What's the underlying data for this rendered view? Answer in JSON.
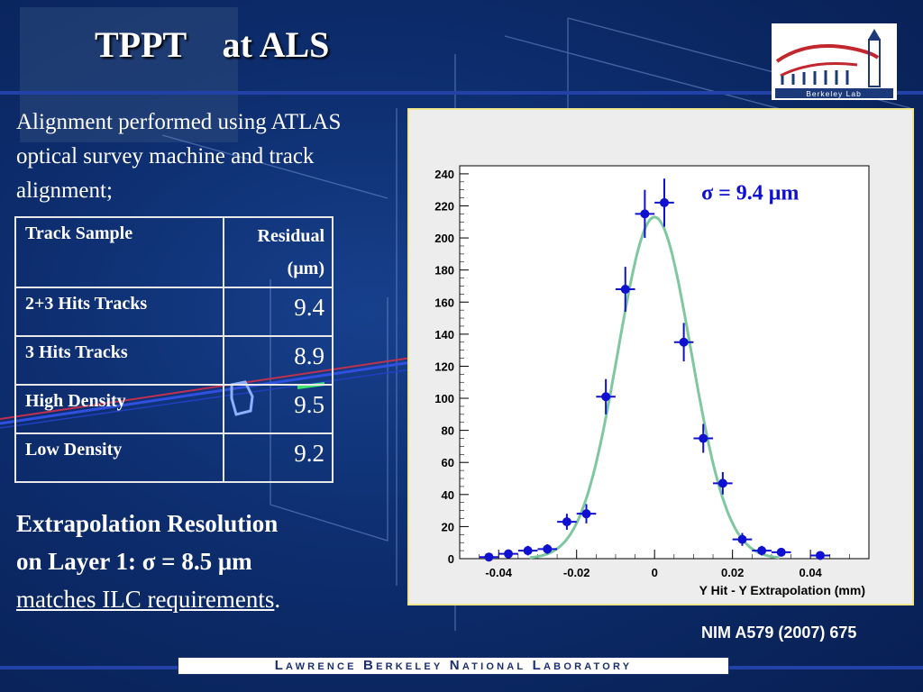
{
  "slide": {
    "title": "TPPT    at ALS",
    "intro": "Alignment performed using ATLAS optical survey machine and track alignment;",
    "table": {
      "header_sample": "Track Sample",
      "header_residual": "Residual",
      "header_unit": "(μm)",
      "rows": [
        {
          "name": "2+3 Hits Tracks",
          "value": "9.4"
        },
        {
          "name": "3 Hits Tracks",
          "value": "8.9"
        },
        {
          "name": "High Density",
          "value": "9.5"
        },
        {
          "name": "Low Density",
          "value": "9.2"
        }
      ]
    },
    "extrapolation": {
      "line1": "Extrapolation Resolution",
      "line2": "on Layer 1:  σ = 8.5 μm",
      "line3": "matches ILC requirements",
      "line3_suffix": "."
    },
    "reference": "NIM A579 (2007) 675",
    "footer": "Lawrence Berkeley National Laboratory",
    "logo_text": "Berkeley Lab"
  },
  "colors": {
    "background": "#0c2a66",
    "points": "#1010d0",
    "fit_curve": "#7ec8a0",
    "chart_border": "#f0e68c"
  },
  "chart_data": {
    "type": "scatter",
    "title": "",
    "annotation": "σ = 9.4 μm",
    "xlabel": "Y Hit - Y Extrapolation (mm)",
    "ylabel": "",
    "xlim": [
      -0.05,
      0.055
    ],
    "ylim": [
      0,
      245
    ],
    "xticks": [
      -0.04,
      -0.02,
      0,
      0.02,
      0.04
    ],
    "xtick_labels": [
      "-0.04",
      "-0.02",
      "0",
      "0.02",
      "0.04"
    ],
    "yticks": [
      0,
      20,
      40,
      60,
      80,
      100,
      120,
      140,
      160,
      180,
      200,
      220,
      240
    ],
    "points": [
      {
        "x": -0.0425,
        "y": 1,
        "err": 2
      },
      {
        "x": -0.0375,
        "y": 3,
        "err": 2
      },
      {
        "x": -0.0325,
        "y": 5,
        "err": 3
      },
      {
        "x": -0.0275,
        "y": 6,
        "err": 3
      },
      {
        "x": -0.0225,
        "y": 23,
        "err": 5
      },
      {
        "x": -0.0175,
        "y": 28,
        "err": 6
      },
      {
        "x": -0.0125,
        "y": 101,
        "err": 11
      },
      {
        "x": -0.0075,
        "y": 168,
        "err": 14
      },
      {
        "x": -0.0025,
        "y": 215,
        "err": 15
      },
      {
        "x": 0.0025,
        "y": 222,
        "err": 15
      },
      {
        "x": 0.0075,
        "y": 135,
        "err": 12
      },
      {
        "x": 0.0125,
        "y": 75,
        "err": 9
      },
      {
        "x": 0.0175,
        "y": 47,
        "err": 7
      },
      {
        "x": 0.0225,
        "y": 12,
        "err": 4
      },
      {
        "x": 0.0275,
        "y": 5,
        "err": 3
      },
      {
        "x": 0.0325,
        "y": 4,
        "err": 2
      },
      {
        "x": 0.0425,
        "y": 2,
        "err": 2
      }
    ],
    "fit": {
      "amplitude": 213,
      "mean": 0.0,
      "sigma": 0.0094
    }
  }
}
